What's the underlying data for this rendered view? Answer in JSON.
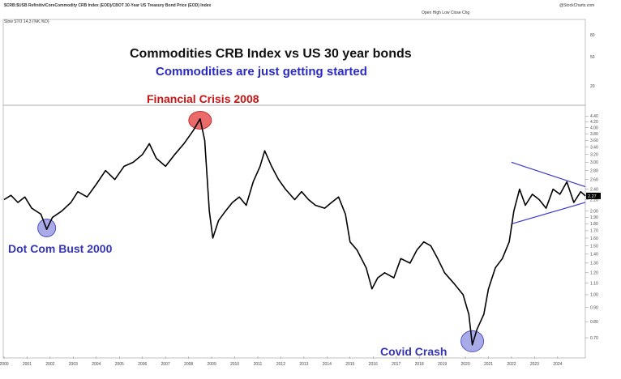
{
  "header": {
    "symbol_line": "$CRB:$USB  Refinitiv/CoreCommodity CRB Index (EOD)/CBOT 30-Year US Treasury Bond Price (EOD) Index",
    "date_line": "@StockCharts.com",
    "ohlc_line": "Open  High  Low  Close  Chg",
    "sub_line": "Slow STO 14,3 (%K,%D)"
  },
  "title": "Commodities CRB Index vs US 30 year bonds",
  "subtitle": "Commodities are just getting started",
  "annotations": {
    "crisis": "Financial Crisis 2008",
    "dotcom": "Dot Com Bust 2000",
    "covid": "Covid Crash"
  },
  "colors": {
    "title": "#111111",
    "subtitle": "#2a2ac8",
    "crisis": "#cc1111",
    "blue_annot": "#3535b5",
    "line": "#000000",
    "trendline": "#3a3ad0",
    "red_circle": "#e85050",
    "blue_circle": "#8b8fe0"
  },
  "chart_data": {
    "type": "line",
    "title": "Commodities CRB Index vs US 30 year bonds",
    "subtitle": "Commodities are just getting started",
    "xlabel": "",
    "ylabel": "",
    "xlim": [
      2000,
      2025.2
    ],
    "ylim": [
      0.6,
      4.5
    ],
    "log_scale": true,
    "grid": false,
    "x_ticks": [
      "2000",
      "2001",
      "2002",
      "2003",
      "2004",
      "2005",
      "2006",
      "2007",
      "2008",
      "2009",
      "2010",
      "2011",
      "2012",
      "2013",
      "2014",
      "2015",
      "2016",
      "2017",
      "2018",
      "2019",
      "2020",
      "2021",
      "2022",
      "2023",
      "2024"
    ],
    "y_ticks": [
      4.4,
      4.2,
      4.0,
      3.8,
      3.6,
      3.4,
      3.2,
      3.0,
      2.8,
      2.6,
      2.4,
      2.2,
      2.0,
      1.9,
      1.8,
      1.7,
      1.6,
      1.5,
      1.4,
      1.3,
      1.2,
      1.1,
      1.0,
      0.9,
      0.8,
      0.7
    ],
    "last_value": "2.27",
    "series": [
      {
        "values": [
          [
            2000.0,
            2.2
          ],
          [
            2000.3,
            2.28
          ],
          [
            2000.6,
            2.15
          ],
          [
            2000.9,
            2.25
          ],
          [
            2001.2,
            2.05
          ],
          [
            2001.6,
            1.95
          ],
          [
            2001.85,
            1.72
          ],
          [
            2002.1,
            1.9
          ],
          [
            2002.5,
            2.0
          ],
          [
            2002.9,
            2.15
          ],
          [
            2003.2,
            2.35
          ],
          [
            2003.6,
            2.25
          ],
          [
            2004.0,
            2.5
          ],
          [
            2004.4,
            2.8
          ],
          [
            2004.8,
            2.6
          ],
          [
            2005.2,
            2.9
          ],
          [
            2005.6,
            3.0
          ],
          [
            2006.0,
            3.2
          ],
          [
            2006.3,
            3.5
          ],
          [
            2006.6,
            3.1
          ],
          [
            2007.0,
            2.9
          ],
          [
            2007.4,
            3.2
          ],
          [
            2007.8,
            3.5
          ],
          [
            2008.2,
            3.9
          ],
          [
            2008.5,
            4.3
          ],
          [
            2008.7,
            3.6
          ],
          [
            2008.9,
            2.0
          ],
          [
            2009.05,
            1.6
          ],
          [
            2009.3,
            1.85
          ],
          [
            2009.6,
            2.0
          ],
          [
            2009.9,
            2.15
          ],
          [
            2010.2,
            2.25
          ],
          [
            2010.5,
            2.1
          ],
          [
            2010.8,
            2.55
          ],
          [
            2011.1,
            2.9
          ],
          [
            2011.3,
            3.3
          ],
          [
            2011.6,
            2.9
          ],
          [
            2011.9,
            2.6
          ],
          [
            2012.2,
            2.4
          ],
          [
            2012.6,
            2.2
          ],
          [
            2012.9,
            2.35
          ],
          [
            2013.2,
            2.2
          ],
          [
            2013.5,
            2.1
          ],
          [
            2013.9,
            2.05
          ],
          [
            2014.2,
            2.15
          ],
          [
            2014.5,
            2.25
          ],
          [
            2014.8,
            1.95
          ],
          [
            2015.0,
            1.55
          ],
          [
            2015.3,
            1.45
          ],
          [
            2015.7,
            1.25
          ],
          [
            2015.95,
            1.05
          ],
          [
            2016.2,
            1.15
          ],
          [
            2016.5,
            1.2
          ],
          [
            2016.9,
            1.15
          ],
          [
            2017.2,
            1.35
          ],
          [
            2017.6,
            1.3
          ],
          [
            2017.9,
            1.45
          ],
          [
            2018.2,
            1.55
          ],
          [
            2018.5,
            1.5
          ],
          [
            2018.8,
            1.35
          ],
          [
            2019.1,
            1.2
          ],
          [
            2019.5,
            1.1
          ],
          [
            2019.9,
            1.0
          ],
          [
            2020.15,
            0.85
          ],
          [
            2020.3,
            0.66
          ],
          [
            2020.5,
            0.75
          ],
          [
            2020.8,
            0.85
          ],
          [
            2021.0,
            1.05
          ],
          [
            2021.3,
            1.25
          ],
          [
            2021.6,
            1.35
          ],
          [
            2021.9,
            1.55
          ],
          [
            2022.1,
            2.0
          ],
          [
            2022.35,
            2.4
          ],
          [
            2022.6,
            2.1
          ],
          [
            2022.9,
            2.3
          ],
          [
            2023.2,
            2.2
          ],
          [
            2023.5,
            2.05
          ],
          [
            2023.8,
            2.4
          ],
          [
            2024.1,
            2.3
          ],
          [
            2024.4,
            2.55
          ],
          [
            2024.7,
            2.15
          ],
          [
            2025.0,
            2.35
          ],
          [
            2025.2,
            2.27
          ]
        ]
      }
    ]
  }
}
